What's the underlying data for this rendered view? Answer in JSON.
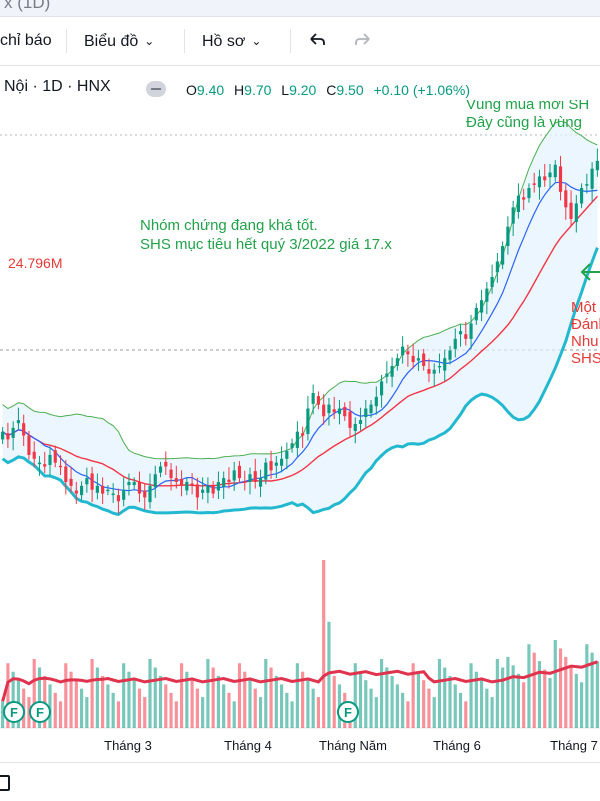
{
  "window": {
    "title_fragment": "x (1D)"
  },
  "toolbar": {
    "indicators_label": "chỉ báo",
    "chart_type_label": "Biểu đồ",
    "profile_label": "Hồ sơ",
    "undo_icon": "undo-icon",
    "redo_icon": "redo-icon"
  },
  "symbol_info": {
    "text": "Nội · 1D · HNX",
    "open_label": "O",
    "open": "9.40",
    "high_label": "H",
    "high": "9.70",
    "low_label": "L",
    "low": "9.20",
    "close_label": "C",
    "close": "9.50",
    "change": "+0.10 (+1.06%)"
  },
  "annotations": {
    "top_right_line1": "Vùng mua mới SH",
    "top_right_line2": "Đây cũng là vùng",
    "middle_line1": "Nhóm chứng đang khá tốt.",
    "middle_line2": "SHS mục tiêu hết quý 3/2022 giá 17.x",
    "right_red_line1": "Một",
    "right_red_line2": "Đánh",
    "right_red_line3": "Nhu",
    "right_red_line4": "SHS",
    "volume_label": "24.796M",
    "event_marker": "F"
  },
  "x_axis": {
    "labels": [
      "Tháng 3",
      "Tháng 4",
      "Tháng Năm",
      "Tháng 6",
      "Tháng 7"
    ]
  },
  "colors": {
    "up": "#089981",
    "down": "#f23645",
    "bb_band": "#4caf50",
    "bb_lower": "#22b8cf",
    "ma_fast": "#2962ff",
    "ma_slow": "#f23645",
    "annotation_green": "#22a24a",
    "annotation_red": "#e53935",
    "vol_ma": "#e0334d"
  },
  "chart_data": {
    "type": "candlestick",
    "closes": [
      9.6,
      9.4,
      9.7,
      9.9,
      9.5,
      9.0,
      8.9,
      8.8,
      8.7,
      9.0,
      8.8,
      8.7,
      8.3,
      8.2,
      8.0,
      8.2,
      8.4,
      8.1,
      8.2,
      8.0,
      8.1,
      8.0,
      7.8,
      8.1,
      8.3,
      8.3,
      8.0,
      7.9,
      8.2,
      8.5,
      8.7,
      8.7,
      8.4,
      8.3,
      8.2,
      8.3,
      8.2,
      7.9,
      8.1,
      8.2,
      8.0,
      8.3,
      8.4,
      8.3,
      8.6,
      8.4,
      8.3,
      8.5,
      8.3,
      8.4,
      8.8,
      8.6,
      8.8,
      8.9,
      9.1,
      9.3,
      9.6,
      9.5,
      10.2,
      10.6,
      10.3,
      10.0,
      10.3,
      10.1,
      10.2,
      10.0,
      9.7,
      9.8,
      9.9,
      10.2,
      10.3,
      10.5,
      10.9,
      11.1,
      11.3,
      11.5,
      11.8,
      11.6,
      11.4,
      11.5,
      11.3,
      11.1,
      11.2,
      11.3,
      11.5,
      11.7,
      12.0,
      12.2,
      12.0,
      12.4,
      12.8,
      13.0,
      13.3,
      13.6,
      14.0,
      14.4,
      14.9,
      15.4,
      15.7,
      15.6,
      15.9,
      16.0,
      16.2,
      16.1,
      16.3,
      16.5,
      15.8,
      15.4,
      15.1,
      15.5,
      15.9,
      16.0,
      16.4,
      16.6
    ],
    "y_range_price": [
      6.8,
      17.4
    ]
  }
}
